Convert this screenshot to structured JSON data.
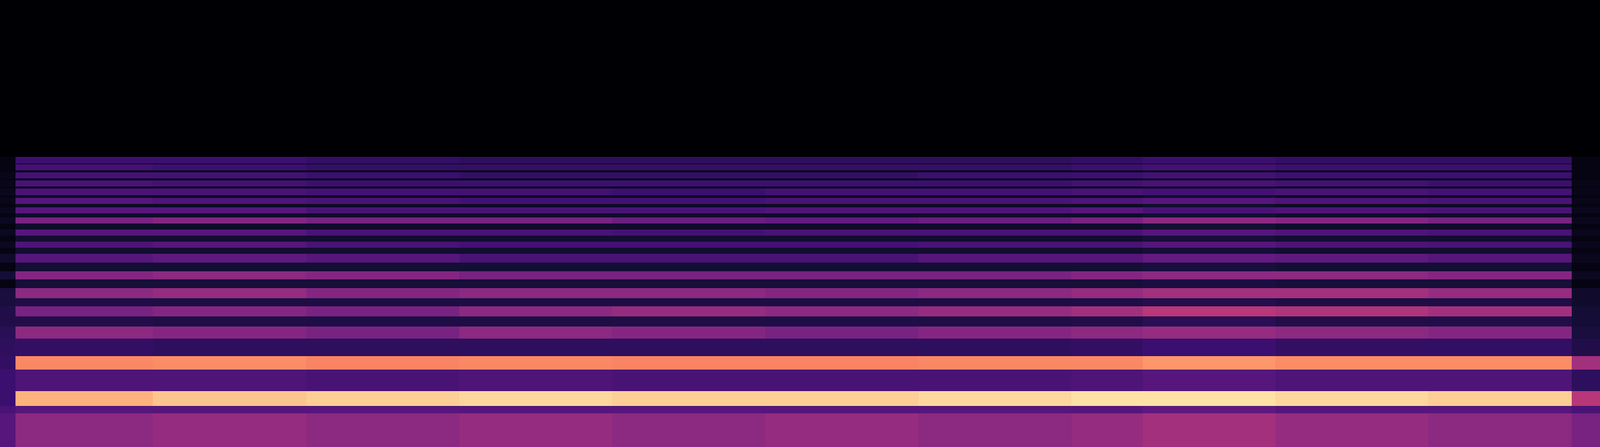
{
  "chart_data": {
    "type": "heatmap",
    "x": [
      0,
      15,
      150,
      300,
      450,
      600,
      750,
      900,
      1050,
      1120,
      1250,
      1400,
      1540,
      1568
    ],
    "y": [
      0,
      33,
      40,
      55,
      76,
      89,
      106,
      118,
      128,
      138,
      146,
      156,
      164,
      172,
      181,
      189,
      195,
      201,
      207,
      213,
      219,
      225,
      229,
      235,
      238,
      244,
      247,
      253,
      255,
      261,
      263,
      269,
      271,
      277,
      278,
      284,
      438
    ],
    "z": [
      [
        35,
        50,
        52,
        50,
        52,
        50,
        52,
        50,
        52,
        55,
        52,
        50,
        45
      ],
      [
        30,
        35,
        35,
        35,
        35,
        35,
        35,
        35,
        35,
        38,
        35,
        35,
        30
      ],
      [
        25,
        92,
        94,
        95,
        96,
        95,
        95,
        96,
        97,
        97,
        96,
        95,
        60
      ],
      [
        25,
        32,
        32,
        30,
        32,
        30,
        30,
        30,
        32,
        35,
        32,
        32,
        20
      ],
      [
        22,
        85,
        86,
        84,
        85,
        84,
        84,
        85,
        85,
        88,
        86,
        86,
        55
      ],
      [
        20,
        22,
        20,
        20,
        20,
        20,
        20,
        20,
        22,
        25,
        22,
        22,
        15
      ],
      [
        18,
        50,
        48,
        45,
        50,
        48,
        45,
        48,
        50,
        52,
        50,
        48,
        12
      ],
      [
        15,
        15,
        14,
        14,
        14,
        14,
        14,
        14,
        15,
        18,
        15,
        15,
        10
      ],
      [
        15,
        45,
        48,
        45,
        50,
        52,
        50,
        52,
        55,
        60,
        58,
        55,
        10
      ],
      [
        12,
        14,
        13,
        13,
        13,
        13,
        13,
        13,
        14,
        16,
        14,
        14,
        8
      ],
      [
        12,
        50,
        52,
        48,
        50,
        50,
        48,
        50,
        52,
        55,
        55,
        52,
        8
      ],
      [
        3,
        11,
        11,
        11,
        11,
        11,
        11,
        11,
        11,
        13,
        11,
        11,
        3
      ],
      [
        10,
        48,
        50,
        48,
        45,
        45,
        45,
        45,
        48,
        50,
        50,
        48,
        6
      ],
      [
        3,
        10,
        10,
        10,
        10,
        10,
        10,
        10,
        10,
        12,
        10,
        10,
        3
      ],
      [
        8,
        35,
        38,
        35,
        30,
        30,
        30,
        35,
        35,
        40,
        38,
        35,
        5
      ],
      [
        3,
        9,
        9,
        9,
        9,
        9,
        9,
        9,
        9,
        11,
        9,
        9,
        3
      ],
      [
        6,
        32,
        35,
        30,
        28,
        28,
        28,
        30,
        30,
        35,
        32,
        30,
        5
      ],
      [
        3,
        9,
        9,
        9,
        9,
        9,
        9,
        9,
        9,
        11,
        9,
        9,
        3
      ],
      [
        6,
        35,
        35,
        30,
        30,
        28,
        30,
        30,
        30,
        35,
        32,
        30,
        5
      ],
      [
        3,
        8,
        8,
        8,
        8,
        8,
        8,
        8,
        8,
        10,
        8,
        8,
        3
      ],
      [
        6,
        45,
        48,
        45,
        45,
        42,
        40,
        42,
        45,
        50,
        48,
        45,
        5
      ],
      [
        3,
        8,
        8,
        8,
        8,
        8,
        8,
        8,
        8,
        10,
        8,
        8,
        3
      ],
      [
        5,
        35,
        35,
        30,
        30,
        30,
        32,
        32,
        35,
        30,
        32,
        30,
        5
      ],
      [
        3,
        7,
        7,
        7,
        7,
        7,
        7,
        7,
        7,
        9,
        7,
        7,
        3
      ],
      [
        5,
        35,
        32,
        30,
        28,
        28,
        30,
        30,
        32,
        35,
        32,
        30,
        4
      ],
      [
        3,
        7,
        7,
        7,
        7,
        7,
        7,
        7,
        7,
        9,
        7,
        7,
        3
      ],
      [
        5,
        30,
        30,
        28,
        28,
        25,
        28,
        28,
        30,
        28,
        30,
        28,
        4
      ],
      [
        3,
        6,
        6,
        6,
        6,
        6,
        6,
        6,
        6,
        8,
        6,
        6,
        3
      ],
      [
        4,
        30,
        28,
        25,
        25,
        25,
        25,
        25,
        28,
        30,
        28,
        25,
        4
      ],
      [
        3,
        6,
        6,
        6,
        6,
        6,
        6,
        6,
        6,
        8,
        6,
        6,
        3
      ],
      [
        4,
        28,
        28,
        25,
        22,
        22,
        22,
        25,
        25,
        28,
        25,
        25,
        3
      ],
      [
        3,
        5,
        5,
        5,
        5,
        5,
        5,
        5,
        5,
        7,
        5,
        5,
        3
      ],
      [
        3,
        28,
        25,
        22,
        22,
        22,
        22,
        22,
        25,
        28,
        25,
        25,
        3
      ],
      [
        3,
        5,
        5,
        5,
        5,
        5,
        5,
        5,
        5,
        7,
        5,
        5,
        3
      ],
      [
        3,
        25,
        25,
        22,
        20,
        20,
        20,
        20,
        22,
        25,
        22,
        22,
        3
      ],
      [
        0,
        0,
        0,
        0,
        0,
        0,
        0,
        0,
        0,
        0,
        0,
        0,
        0
      ]
    ],
    "xlim": [
      0,
      1568
    ],
    "ylim": [
      0,
      438
    ],
    "zlim": [
      0,
      100
    ],
    "tick_labels": false
  }
}
